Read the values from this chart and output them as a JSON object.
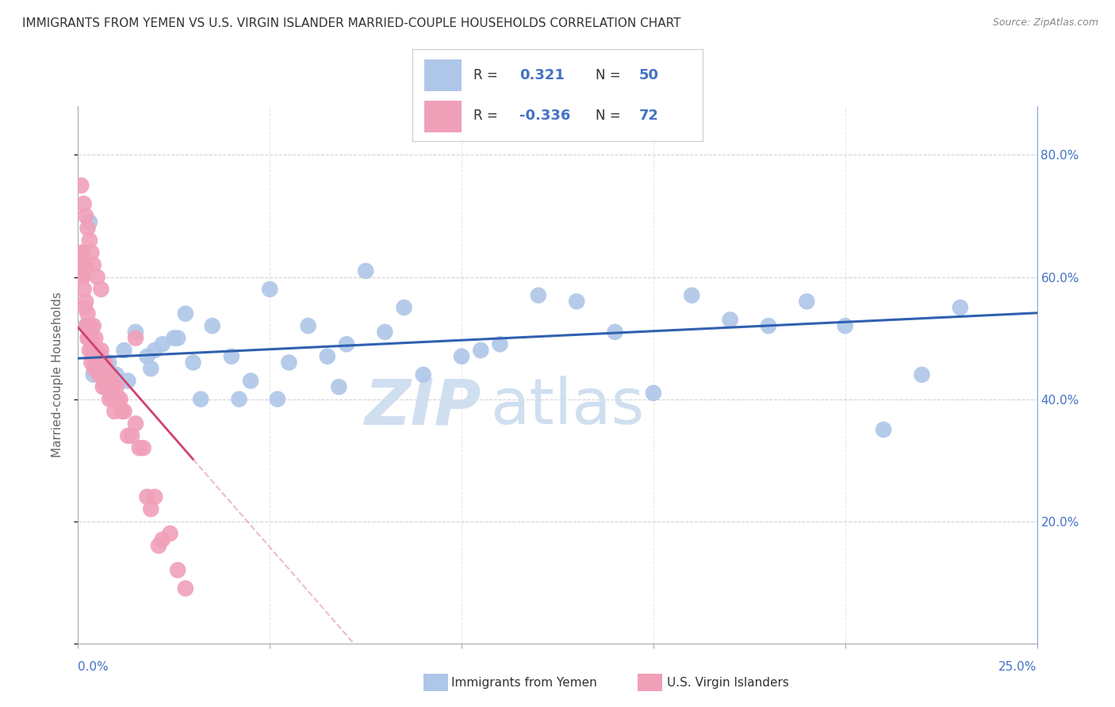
{
  "title": "IMMIGRANTS FROM YEMEN VS U.S. VIRGIN ISLANDER MARRIED-COUPLE HOUSEHOLDS CORRELATION CHART",
  "source": "Source: ZipAtlas.com",
  "ylabel_label": "Married-couple Households",
  "blue_color": "#aec6e8",
  "blue_line_color": "#3060b0",
  "pink_color": "#f0a0b8",
  "pink_line_color": "#d04070",
  "pink_dash_color": "#e090a8",
  "blue_r": 0.321,
  "blue_n": 50,
  "pink_r": -0.336,
  "pink_n": 72,
  "xlim": [
    0.0,
    25.0
  ],
  "ylim": [
    0.0,
    88.0
  ],
  "tick_color": "#4472c4",
  "text_color": "#333333",
  "source_color": "#888888",
  "grid_color": "#c8c8c8",
  "watermark_color": "#d0dff0",
  "background_color": "#ffffff",
  "blue_points_x": [
    0.3,
    0.5,
    0.2,
    0.4,
    0.6,
    0.8,
    1.0,
    1.2,
    1.5,
    1.8,
    2.0,
    2.2,
    2.5,
    2.8,
    3.0,
    3.5,
    4.0,
    4.5,
    5.0,
    5.5,
    6.0,
    6.5,
    7.0,
    7.5,
    8.0,
    9.0,
    10.0,
    11.0,
    12.0,
    13.0,
    14.0,
    15.0,
    16.0,
    17.0,
    18.0,
    20.0,
    21.0,
    22.0,
    0.7,
    1.3,
    1.9,
    2.6,
    3.2,
    4.2,
    5.2,
    6.8,
    8.5,
    10.5,
    19.0,
    23.0
  ],
  "blue_points_y": [
    69.0,
    47.0,
    52.0,
    44.0,
    47.0,
    46.0,
    44.0,
    48.0,
    51.0,
    47.0,
    48.0,
    49.0,
    50.0,
    54.0,
    46.0,
    52.0,
    47.0,
    43.0,
    58.0,
    46.0,
    52.0,
    47.0,
    49.0,
    61.0,
    51.0,
    44.0,
    47.0,
    49.0,
    57.0,
    56.0,
    51.0,
    41.0,
    57.0,
    53.0,
    52.0,
    52.0,
    35.0,
    44.0,
    42.0,
    43.0,
    45.0,
    50.0,
    40.0,
    40.0,
    40.0,
    42.0,
    55.0,
    48.0,
    56.0,
    55.0
  ],
  "pink_points_x": [
    0.05,
    0.08,
    0.1,
    0.1,
    0.12,
    0.12,
    0.15,
    0.15,
    0.18,
    0.2,
    0.2,
    0.22,
    0.25,
    0.25,
    0.28,
    0.3,
    0.3,
    0.35,
    0.35,
    0.38,
    0.4,
    0.4,
    0.42,
    0.45,
    0.45,
    0.5,
    0.5,
    0.55,
    0.58,
    0.6,
    0.6,
    0.65,
    0.68,
    0.7,
    0.7,
    0.75,
    0.78,
    0.8,
    0.82,
    0.85,
    0.88,
    0.9,
    0.92,
    0.95,
    1.0,
    1.05,
    1.1,
    1.15,
    1.2,
    1.3,
    1.4,
    1.5,
    1.6,
    1.7,
    1.8,
    1.9,
    2.0,
    2.1,
    2.2,
    2.4,
    2.6,
    0.08,
    0.15,
    0.2,
    0.25,
    0.3,
    0.35,
    0.4,
    0.5,
    0.6,
    1.5,
    2.8
  ],
  "pink_points_y": [
    61.0,
    64.0,
    63.0,
    60.0,
    60.0,
    64.0,
    58.0,
    61.0,
    55.0,
    56.0,
    62.0,
    52.0,
    50.0,
    54.0,
    50.0,
    52.0,
    48.0,
    50.0,
    46.0,
    48.0,
    47.0,
    52.0,
    45.0,
    46.0,
    50.0,
    45.0,
    48.0,
    44.0,
    44.0,
    46.0,
    48.0,
    42.0,
    43.0,
    44.0,
    46.0,
    42.0,
    44.0,
    42.0,
    40.0,
    41.0,
    43.0,
    42.0,
    40.0,
    38.0,
    42.0,
    40.0,
    40.0,
    38.0,
    38.0,
    34.0,
    34.0,
    36.0,
    32.0,
    32.0,
    24.0,
    22.0,
    24.0,
    16.0,
    17.0,
    18.0,
    12.0,
    75.0,
    72.0,
    70.0,
    68.0,
    66.0,
    64.0,
    62.0,
    60.0,
    58.0,
    50.0,
    9.0
  ]
}
